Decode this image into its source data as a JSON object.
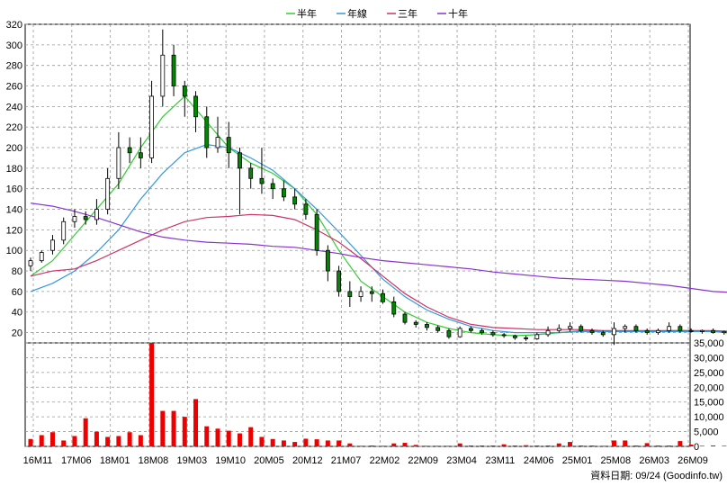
{
  "chart_data": {
    "type": "line",
    "legend": [
      {
        "label": "半年",
        "color": "#33cc33"
      },
      {
        "label": "年線",
        "color": "#3399dd"
      },
      {
        "label": "三年",
        "color": "#cc3366"
      },
      {
        "label": "十年",
        "color": "#8833cc"
      }
    ],
    "price_panel": {
      "ylim": [
        10,
        320
      ],
      "yticks": [
        20,
        40,
        60,
        80,
        100,
        120,
        140,
        160,
        180,
        200,
        220,
        240,
        260,
        280,
        300,
        320
      ],
      "candles": [
        [
          0,
          85,
          93,
          80,
          90
        ],
        [
          0.5,
          90,
          100,
          88,
          98
        ],
        [
          1,
          100,
          115,
          96,
          110
        ],
        [
          1.5,
          110,
          132,
          106,
          128
        ],
        [
          2,
          128,
          140,
          122,
          133
        ],
        [
          2.5,
          133,
          138,
          125,
          130
        ],
        [
          3,
          130,
          150,
          125,
          140
        ],
        [
          3.5,
          140,
          180,
          135,
          170
        ],
        [
          4,
          170,
          215,
          160,
          200
        ],
        [
          4.5,
          200,
          210,
          185,
          195
        ],
        [
          5,
          195,
          210,
          180,
          190
        ],
        [
          5.5,
          190,
          265,
          185,
          250
        ],
        [
          6,
          250,
          315,
          240,
          290
        ],
        [
          6.5,
          290,
          300,
          250,
          260
        ],
        [
          7,
          260,
          265,
          230,
          250
        ],
        [
          7.5,
          250,
          255,
          215,
          230
        ],
        [
          8,
          230,
          240,
          190,
          200
        ],
        [
          8.5,
          200,
          230,
          195,
          210
        ],
        [
          9,
          210,
          225,
          180,
          195
        ],
        [
          9.5,
          195,
          200,
          135,
          180
        ],
        [
          10,
          180,
          185,
          160,
          170
        ],
        [
          10.5,
          170,
          200,
          155,
          165
        ],
        [
          11,
          165,
          170,
          150,
          160
        ],
        [
          11.5,
          160,
          168,
          148,
          152
        ],
        [
          12,
          152,
          160,
          140,
          145
        ],
        [
          12.5,
          145,
          150,
          130,
          135
        ],
        [
          13,
          135,
          140,
          95,
          100
        ],
        [
          13.5,
          100,
          105,
          70,
          80
        ],
        [
          14,
          80,
          85,
          55,
          60
        ],
        [
          14.5,
          60,
          70,
          45,
          55
        ],
        [
          15,
          55,
          65,
          50,
          60
        ],
        [
          15.5,
          60,
          65,
          50,
          58
        ],
        [
          16,
          58,
          62,
          48,
          50
        ],
        [
          16.5,
          50,
          55,
          35,
          38
        ],
        [
          17,
          38,
          40,
          28,
          30
        ],
        [
          17.5,
          30,
          32,
          25,
          28
        ],
        [
          18,
          28,
          30,
          22,
          25
        ],
        [
          18.5,
          25,
          27,
          20,
          22
        ],
        [
          19,
          22,
          24,
          14,
          16
        ],
        [
          19.5,
          16,
          26,
          15,
          24
        ],
        [
          20,
          24,
          26,
          20,
          22
        ],
        [
          20.5,
          22,
          24,
          18,
          20
        ],
        [
          21,
          20,
          22,
          16,
          18
        ],
        [
          21.5,
          18,
          20,
          15,
          17
        ],
        [
          22,
          17,
          18,
          13,
          15
        ],
        [
          22.5,
          15,
          17,
          12,
          14
        ],
        [
          23,
          14,
          20,
          13,
          18
        ],
        [
          23.5,
          18,
          26,
          16,
          22
        ],
        [
          24,
          22,
          28,
          20,
          24
        ],
        [
          24.5,
          24,
          30,
          21,
          26
        ],
        [
          25,
          26,
          28,
          20,
          22
        ],
        [
          25.5,
          22,
          24,
          18,
          20
        ],
        [
          26,
          20,
          22,
          16,
          18
        ],
        [
          26.5,
          18,
          30,
          8,
          24
        ],
        [
          27,
          24,
          28,
          20,
          26
        ],
        [
          27.5,
          26,
          28,
          20,
          22
        ],
        [
          28,
          22,
          24,
          18,
          20
        ],
        [
          28.5,
          20,
          24,
          18,
          22
        ],
        [
          29,
          22,
          30,
          20,
          26
        ],
        [
          29.5,
          26,
          28,
          20,
          22
        ],
        [
          30,
          22,
          24,
          20,
          21
        ],
        [
          30.5,
          21,
          23,
          19,
          22
        ],
        [
          31,
          22,
          24,
          19,
          20
        ],
        [
          31.5,
          20,
          22,
          18,
          21
        ],
        [
          32,
          21,
          23,
          19,
          20
        ],
        [
          32.5,
          20,
          22,
          13,
          15
        ],
        [
          33,
          15,
          17,
          11,
          12
        ],
        [
          33.5,
          12,
          14,
          10,
          12
        ],
        [
          34,
          12,
          14,
          10,
          13
        ],
        [
          34.5,
          13,
          15,
          11,
          14
        ],
        [
          35,
          14,
          24,
          13,
          22
        ],
        [
          35.5,
          22,
          26,
          20,
          24
        ],
        [
          36,
          24,
          26,
          20,
          22
        ],
        [
          36.5,
          22,
          23,
          18,
          20
        ],
        [
          37,
          20,
          22,
          17,
          18
        ],
        [
          37.5,
          18,
          20,
          16,
          17
        ],
        [
          38,
          17,
          19,
          15,
          16
        ],
        [
          38.5,
          16,
          18,
          14,
          15
        ],
        [
          39,
          15,
          17,
          13,
          14
        ],
        [
          39.5,
          14,
          16,
          12,
          13
        ],
        [
          40,
          13,
          15,
          12,
          13
        ],
        [
          40.5,
          13,
          14,
          11,
          12
        ]
      ],
      "series": [
        {
          "name": "半年",
          "x": [
            0,
            1,
            2,
            3,
            4,
            5,
            6,
            7,
            8,
            9,
            10,
            11,
            12,
            13,
            14,
            15,
            16,
            17,
            18,
            19,
            20,
            21,
            22,
            23,
            24,
            25,
            26,
            27,
            28,
            29,
            30,
            31,
            32,
            33,
            34,
            35,
            36,
            37,
            38,
            39,
            40,
            40.5
          ],
          "y": [
            75,
            90,
            115,
            140,
            165,
            200,
            230,
            250,
            225,
            200,
            185,
            175,
            160,
            135,
            100,
            70,
            55,
            40,
            30,
            24,
            20,
            18,
            17,
            18,
            20,
            22,
            21,
            21,
            21,
            22,
            22,
            21,
            19,
            17,
            16,
            16,
            20,
            21,
            19,
            17,
            15,
            14
          ]
        },
        {
          "name": "年線",
          "x": [
            0,
            1,
            2,
            3,
            4,
            5,
            6,
            7,
            8,
            9,
            10,
            11,
            12,
            13,
            14,
            15,
            16,
            17,
            18,
            19,
            20,
            21,
            22,
            23,
            24,
            25,
            26,
            27,
            28,
            29,
            30,
            31,
            32,
            33,
            34,
            35,
            36,
            37,
            38,
            39,
            40,
            40.5
          ],
          "y": [
            60,
            68,
            80,
            98,
            120,
            150,
            175,
            195,
            203,
            200,
            190,
            178,
            160,
            140,
            118,
            95,
            72,
            55,
            42,
            33,
            26,
            22,
            20,
            20,
            20,
            21,
            21,
            21,
            21,
            21,
            21,
            21,
            20,
            19,
            18,
            17,
            18,
            19,
            19,
            18,
            17,
            16
          ]
        },
        {
          "name": "三年",
          "x": [
            0,
            1,
            2,
            3,
            4,
            5,
            6,
            7,
            8,
            9,
            10,
            11,
            12,
            13,
            14,
            15,
            16,
            17,
            18,
            19,
            20,
            21,
            22,
            23,
            24,
            25,
            26,
            27,
            28,
            29,
            30,
            31,
            32,
            33,
            34,
            35,
            36,
            37,
            38,
            39,
            40,
            40.5
          ],
          "y": [
            75,
            80,
            82,
            90,
            100,
            110,
            120,
            128,
            132,
            133,
            135,
            134,
            130,
            120,
            108,
            92,
            75,
            58,
            45,
            35,
            28,
            25,
            24,
            23,
            23,
            23,
            22,
            22,
            22,
            22,
            22,
            22,
            21,
            20,
            19,
            19,
            19,
            19,
            19,
            18,
            17,
            16
          ]
        },
        {
          "name": "十年",
          "x": [
            0,
            1,
            2,
            3,
            4,
            5,
            6,
            7,
            8,
            9,
            10,
            11,
            12,
            13,
            14,
            15,
            16,
            17,
            18,
            19,
            20,
            21,
            22,
            23,
            24,
            25,
            26,
            27,
            28,
            29,
            30,
            31,
            32,
            33,
            34,
            35,
            36,
            37,
            38,
            39,
            40,
            40.5
          ],
          "y": [
            146,
            143,
            138,
            132,
            125,
            118,
            113,
            110,
            108,
            107,
            106,
            104,
            103,
            100,
            97,
            93,
            90,
            88,
            86,
            84,
            82,
            79,
            77,
            75,
            73,
            72,
            71,
            70,
            68,
            66,
            63,
            60,
            59,
            58,
            57,
            56,
            55,
            54,
            53,
            52,
            51,
            50
          ]
        }
      ]
    },
    "volume_panel": {
      "ylim": [
        0,
        35000
      ],
      "yticks": [
        0,
        5000,
        10000,
        15000,
        20000,
        25000,
        30000,
        35000
      ],
      "ytick_labels": [
        "0",
        "5,000",
        "10,000",
        "15,000",
        "20,000",
        "25,000",
        "30,000",
        "35,000"
      ],
      "x": [
        0,
        0.5,
        1,
        1.5,
        2,
        2.5,
        3,
        3.5,
        4,
        4.5,
        5,
        5.5,
        6,
        6.5,
        7,
        7.5,
        8,
        8.5,
        9,
        9.5,
        10,
        10.5,
        11,
        11.5,
        12,
        12.5,
        13,
        13.5,
        14,
        14.5,
        15,
        15.5,
        16,
        16.5,
        17,
        17.5,
        18,
        18.5,
        19,
        19.5,
        20,
        20.5,
        21,
        21.5,
        22,
        22.5,
        23,
        23.5,
        24,
        24.5,
        25,
        25.5,
        26,
        26.5,
        27,
        27.5,
        28,
        28.5,
        29,
        29.5,
        30,
        30.5,
        31,
        31.5,
        32,
        32.5,
        33,
        33.5,
        34,
        34.5,
        35,
        35.5,
        36,
        36.5,
        37,
        37.5,
        38,
        38.5,
        39,
        39.5,
        40,
        40.5
      ],
      "values": [
        2500,
        3800,
        4800,
        2000,
        3500,
        9500,
        5000,
        3200,
        3500,
        4800,
        3800,
        35000,
        12000,
        12000,
        10000,
        16000,
        6800,
        6000,
        5300,
        4400,
        6500,
        3200,
        2500,
        2000,
        1500,
        2600,
        2400,
        2000,
        2000,
        1000,
        200,
        300,
        200,
        1000,
        1200,
        500,
        200,
        200,
        200,
        1000,
        300,
        300,
        300,
        700,
        300,
        400,
        300,
        300,
        1000,
        1500,
        300,
        300,
        200,
        2000,
        2000,
        300,
        1100,
        300,
        300,
        1800,
        600,
        200,
        300,
        200,
        200,
        300,
        200,
        500,
        500,
        200,
        200,
        200,
        1100,
        200,
        200,
        200,
        300,
        200,
        200,
        200,
        200,
        200
      ]
    },
    "x_tick_labels": [
      "16M11",
      "17M06",
      "18M01",
      "18M08",
      "19M03",
      "19M10",
      "20M05",
      "20M12",
      "21M07",
      "22M02",
      "22M09",
      "23M04",
      "23M11",
      "24M06",
      "25M01",
      "25M08",
      "26M03",
      "26M09"
    ],
    "footer_note": "資料日期: 09/24  (Goodinfo.tw)"
  }
}
